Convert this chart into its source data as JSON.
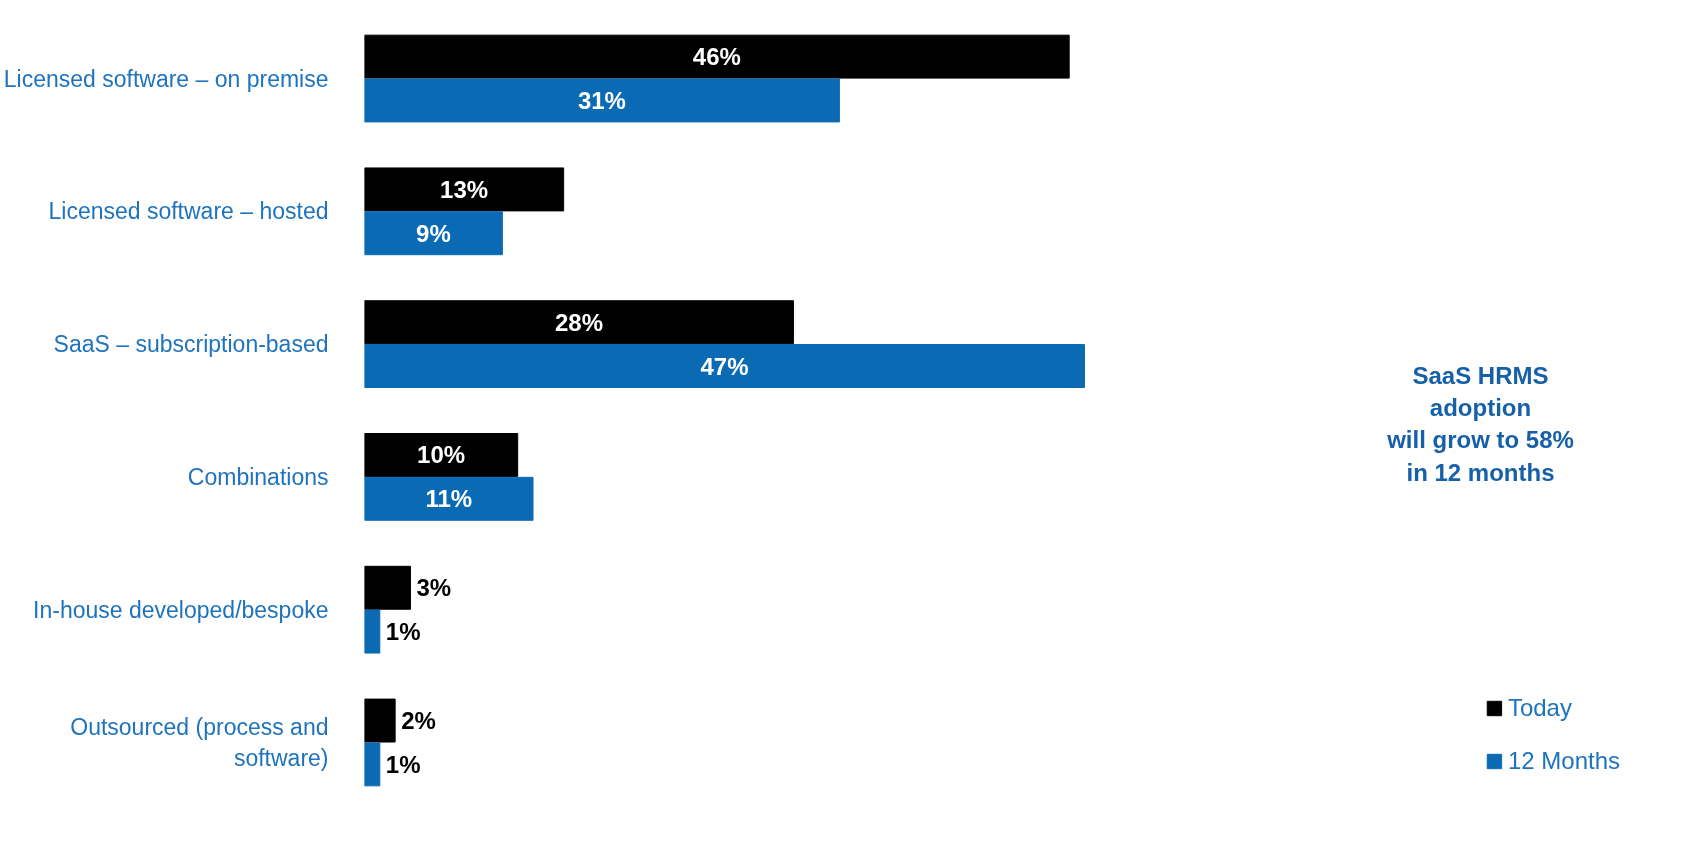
{
  "chart_data": {
    "type": "bar",
    "orientation": "horizontal",
    "categories": [
      "Licensed software – on premise",
      "Licensed software – hosted",
      "SaaS – subscription-based",
      "Combinations",
      "In-house developed/bespoke",
      "Outsourced (process and software)"
    ],
    "series": [
      {
        "name": "Today",
        "color": "#000000",
        "values": [
          46,
          13,
          28,
          10,
          3,
          2
        ],
        "value_labels": [
          "46%",
          "13%",
          "28%",
          "10%",
          "3%",
          "2%"
        ]
      },
      {
        "name": "12 Months",
        "color": "#0a6ab4",
        "values": [
          31,
          9,
          47,
          11,
          1,
          1
        ],
        "value_labels": [
          "31%",
          "9%",
          "47%",
          "11%",
          "1%",
          "1%"
        ]
      }
    ],
    "tick_labels": "y",
    "grid": false,
    "legend": "bottom right",
    "annotations": [
      "SaaS HRMS\nadoption\nwill grow to 58%\nin 12 months"
    ]
  }
}
